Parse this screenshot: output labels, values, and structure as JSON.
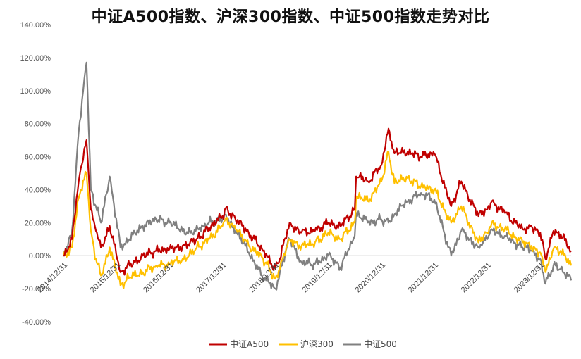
{
  "chart_data": {
    "type": "line",
    "title": "中证A500指数、沪深300指数、中证500指数走势对比",
    "xlabel": "",
    "ylabel": "",
    "ylim": [
      -40,
      140
    ],
    "y_ticks": [
      "140.00%",
      "120.00%",
      "100.00%",
      "80.00%",
      "60.00%",
      "40.00%",
      "20.00%",
      "0.00%",
      "-20.00%",
      "-40.00%"
    ],
    "y_tick_values": [
      140,
      120,
      100,
      80,
      60,
      40,
      20,
      0,
      -20,
      -40
    ],
    "x_ticks": [
      "2014/12/31",
      "2015/12/31",
      "2016/12/31",
      "2017/12/31",
      "2018/12/31",
      "2019/12/31",
      "2020/12/31",
      "2021/12/31",
      "2022/12/31",
      "2023/12/31"
    ],
    "xlim": [
      "2014/12/31",
      "2024/07/31"
    ],
    "grid": false,
    "legend_position": "bottom",
    "series": [
      {
        "name": "中证A500",
        "color": "#c00000",
        "x": [
          "2014/12/31",
          "2015/02/28",
          "2015/04/15",
          "2015/06/08",
          "2015/07/08",
          "2015/08/12",
          "2015/09/15",
          "2015/11/15",
          "2016/01/28",
          "2016/03/31",
          "2016/06/30",
          "2016/09/30",
          "2016/12/31",
          "2017/03/31",
          "2017/06/30",
          "2017/09/30",
          "2017/12/31",
          "2018/01/24",
          "2018/03/31",
          "2018/06/30",
          "2018/09/30",
          "2018/12/31",
          "2019/01/31",
          "2019/04/08",
          "2019/06/30",
          "2019/09/30",
          "2019/12/31",
          "2020/03/23",
          "2020/06/30",
          "2020/07/10",
          "2020/09/30",
          "2020/12/31",
          "2021/02/18",
          "2021/03/31",
          "2021/06/30",
          "2021/09/30",
          "2021/12/31",
          "2022/04/26",
          "2022/07/05",
          "2022/10/31",
          "2022/12/31",
          "2023/01/31",
          "2023/04/30",
          "2023/08/31",
          "2023/10/31",
          "2023/12/31",
          "2024/02/05",
          "2024/03/31",
          "2024/05/20",
          "2024/07/31"
        ],
        "values": [
          0,
          10,
          45,
          70,
          28,
          15,
          5,
          18,
          -10,
          -6,
          0,
          3,
          4,
          6,
          9,
          17,
          24,
          29,
          22,
          14,
          4,
          -8,
          -2,
          20,
          14,
          15,
          20,
          18,
          28,
          48,
          45,
          55,
          77,
          62,
          63,
          60,
          62,
          30,
          45,
          24,
          28,
          33,
          26,
          16,
          18,
          14,
          -2,
          15,
          13,
          3
        ]
      },
      {
        "name": "沪深300",
        "color": "#ffc000",
        "x": [
          "2014/12/31",
          "2015/02/28",
          "2015/04/15",
          "2015/06/08",
          "2015/07/08",
          "2015/08/12",
          "2015/09/15",
          "2015/11/15",
          "2016/01/28",
          "2016/03/31",
          "2016/06/30",
          "2016/09/30",
          "2016/12/31",
          "2017/03/31",
          "2017/06/30",
          "2017/09/30",
          "2017/12/31",
          "2018/01/24",
          "2018/03/31",
          "2018/06/30",
          "2018/09/30",
          "2018/12/31",
          "2019/01/31",
          "2019/04/08",
          "2019/06/30",
          "2019/09/30",
          "2019/12/31",
          "2020/03/23",
          "2020/06/30",
          "2020/07/10",
          "2020/09/30",
          "2020/12/31",
          "2021/02/18",
          "2021/03/31",
          "2021/06/30",
          "2021/09/30",
          "2021/12/31",
          "2022/04/26",
          "2022/07/05",
          "2022/10/31",
          "2022/12/31",
          "2023/01/31",
          "2023/04/30",
          "2023/08/31",
          "2023/10/31",
          "2023/12/31",
          "2024/02/05",
          "2024/03/31",
          "2024/05/20",
          "2024/07/31"
        ],
        "values": [
          0,
          5,
          35,
          50,
          15,
          -2,
          -12,
          5,
          -18,
          -13,
          -10,
          -6,
          -5,
          -2,
          4,
          10,
          18,
          23,
          16,
          6,
          -1,
          -14,
          -8,
          10,
          6,
          8,
          14,
          10,
          20,
          36,
          33,
          45,
          63,
          44,
          47,
          42,
          40,
          20,
          30,
          8,
          14,
          20,
          16,
          8,
          6,
          2,
          -10,
          4,
          3,
          -6
        ]
      },
      {
        "name": "中证500",
        "color": "#808080",
        "x": [
          "2014/12/31",
          "2015/02/28",
          "2015/04/15",
          "2015/06/08",
          "2015/07/08",
          "2015/08/12",
          "2015/09/15",
          "2015/11/15",
          "2016/01/28",
          "2016/03/31",
          "2016/06/30",
          "2016/09/30",
          "2016/12/31",
          "2017/03/31",
          "2017/06/30",
          "2017/09/30",
          "2017/12/31",
          "2018/01/24",
          "2018/03/31",
          "2018/06/30",
          "2018/09/30",
          "2018/12/31",
          "2019/01/31",
          "2019/04/08",
          "2019/06/30",
          "2019/09/30",
          "2019/12/31",
          "2020/03/23",
          "2020/06/30",
          "2020/07/10",
          "2020/09/30",
          "2020/12/31",
          "2021/02/18",
          "2021/03/31",
          "2021/06/30",
          "2021/09/30",
          "2021/12/31",
          "2022/04/26",
          "2022/07/05",
          "2022/10/31",
          "2022/12/31",
          "2023/01/31",
          "2023/04/30",
          "2023/08/31",
          "2023/10/31",
          "2023/12/31",
          "2024/02/05",
          "2024/03/31",
          "2024/05/20",
          "2024/07/31"
        ],
        "values": [
          0,
          15,
          75,
          117,
          40,
          30,
          20,
          48,
          5,
          10,
          18,
          22,
          20,
          15,
          15,
          20,
          22,
          25,
          15,
          2,
          -12,
          -20,
          -10,
          10,
          -4,
          -5,
          0,
          -7,
          12,
          26,
          20,
          22,
          20,
          25,
          33,
          38,
          34,
          0,
          15,
          5,
          10,
          16,
          12,
          5,
          3,
          -2,
          -17,
          -6,
          -8,
          -15
        ]
      }
    ]
  }
}
